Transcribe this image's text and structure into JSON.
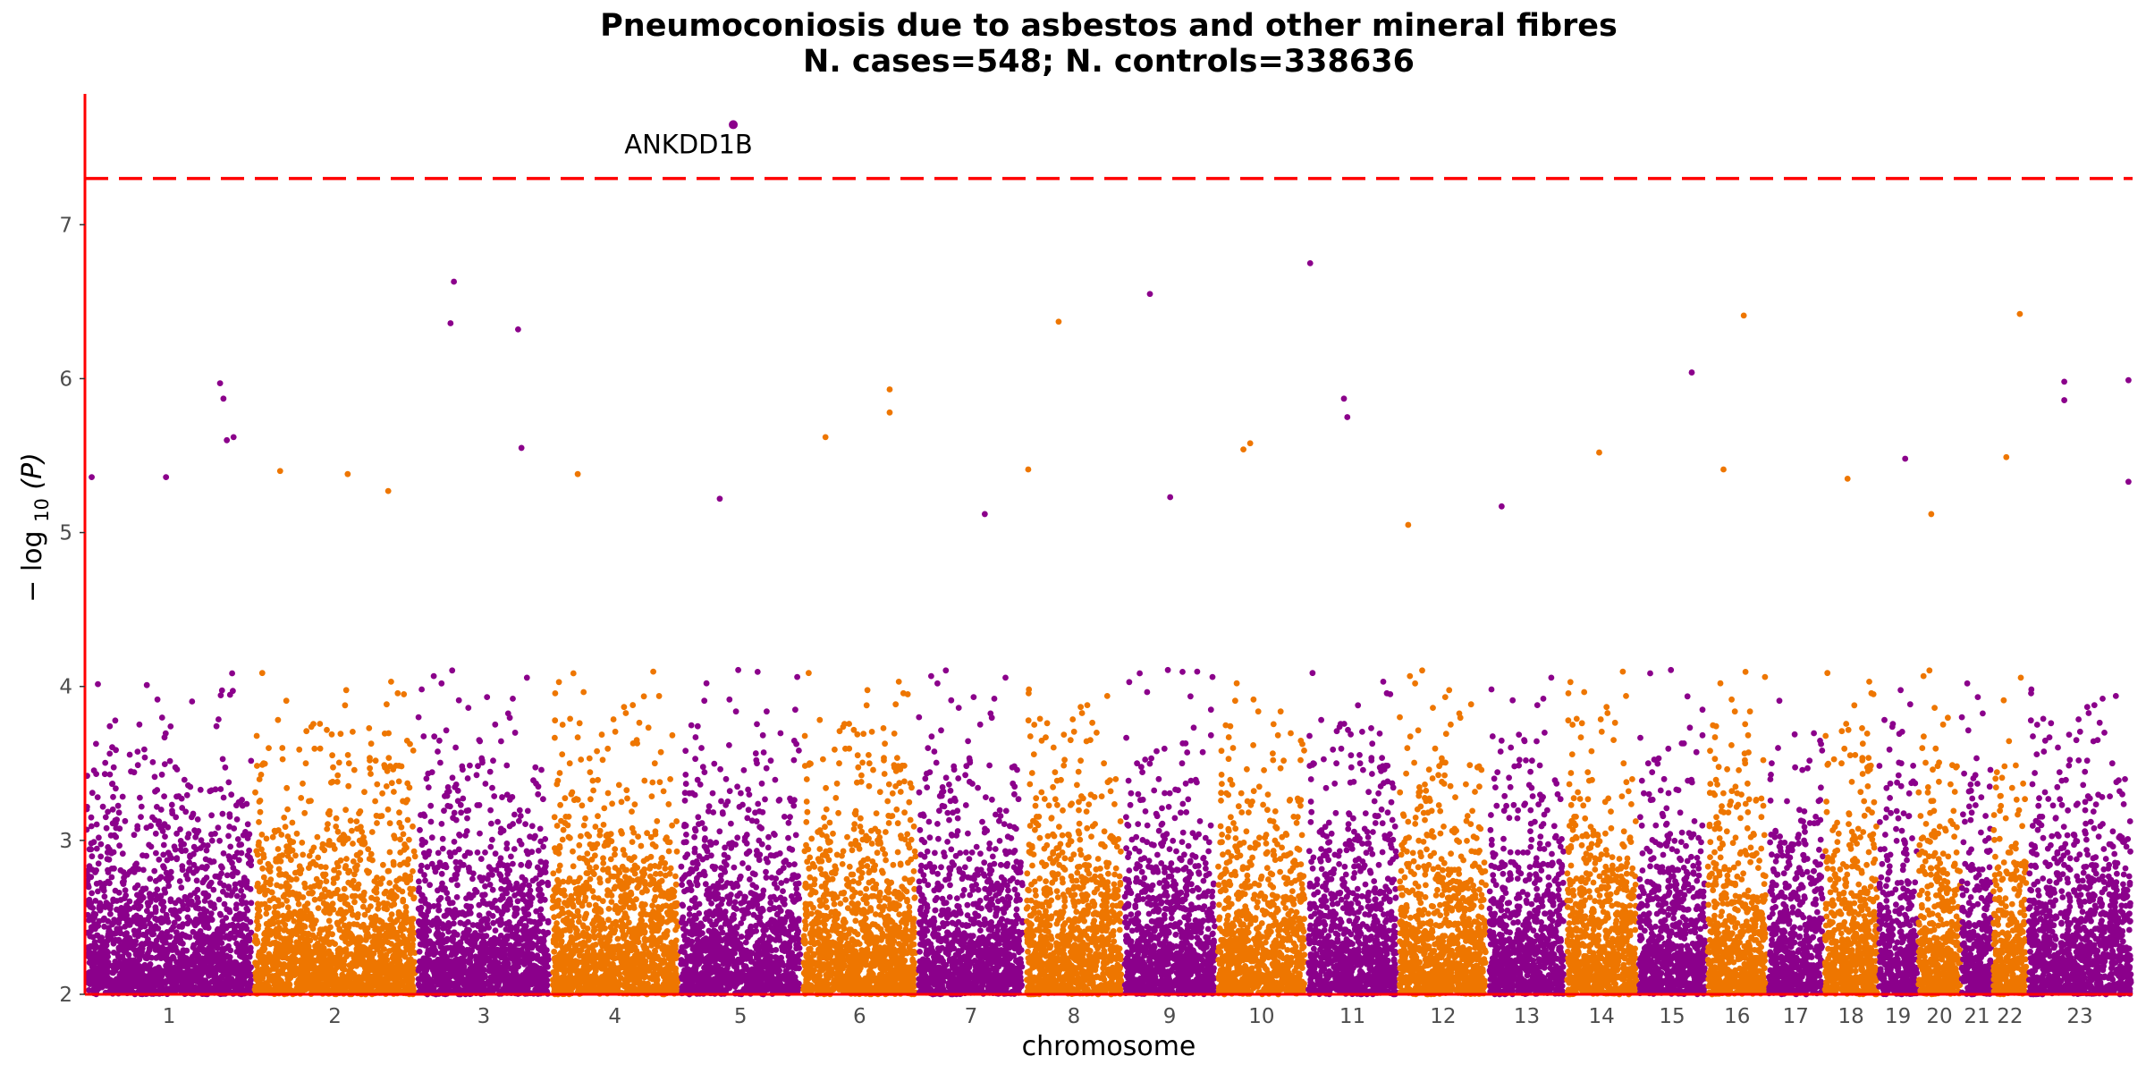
{
  "chart_data": {
    "type": "scatter",
    "title_line1": "Pneumoconiosis due to asbestos and other mineral fibres",
    "title_line2": "N. cases=548; N. controls=338636",
    "xlabel": "chromosome",
    "ylabel_base": "− log",
    "ylabel_sub": "10",
    "ylabel_arg": "(P)",
    "ylim": [
      2,
      7.85
    ],
    "yticks": [
      2,
      3,
      4,
      5,
      6,
      7
    ],
    "threshold": 7.3,
    "colors": {
      "odd": "#8B008B",
      "even": "#EE7600",
      "threshold": "#FF0000",
      "axis": "#FF0000"
    },
    "chromosomes": [
      {
        "label": "1",
        "start": 0,
        "end": 248.9
      },
      {
        "label": "2",
        "start": 248.9,
        "end": 491.1
      },
      {
        "label": "3",
        "start": 491.1,
        "end": 689.4
      },
      {
        "label": "4",
        "start": 689.4,
        "end": 879.6
      },
      {
        "label": "5",
        "start": 879.6,
        "end": 1061.1
      },
      {
        "label": "6",
        "start": 1061.1,
        "end": 1231.9
      },
      {
        "label": "7",
        "start": 1231.9,
        "end": 1391.2
      },
      {
        "label": "8",
        "start": 1391.2,
        "end": 1536.3
      },
      {
        "label": "9",
        "start": 1536.3,
        "end": 1674.7
      },
      {
        "label": "10",
        "start": 1674.7,
        "end": 1808.5
      },
      {
        "label": "11",
        "start": 1808.5,
        "end": 1943.6
      },
      {
        "label": "12",
        "start": 1943.6,
        "end": 2076.9
      },
      {
        "label": "13",
        "start": 2076.9,
        "end": 2191.3
      },
      {
        "label": "14",
        "start": 2191.3,
        "end": 2298.3
      },
      {
        "label": "15",
        "start": 2298.3,
        "end": 2400.3
      },
      {
        "label": "16",
        "start": 2400.3,
        "end": 2490.6
      },
      {
        "label": "17",
        "start": 2490.6,
        "end": 2573.9
      },
      {
        "label": "18",
        "start": 2573.9,
        "end": 2654.2
      },
      {
        "label": "19",
        "start": 2654.2,
        "end": 2712.8
      },
      {
        "label": "20",
        "start": 2712.8,
        "end": 2777.2
      },
      {
        "label": "21",
        "start": 2777.2,
        "end": 2823.9
      },
      {
        "label": "22",
        "start": 2823.9,
        "end": 2874.7
      },
      {
        "label": "23",
        "start": 2874.7,
        "end": 3030.8
      }
    ],
    "top_hits": [
      {
        "chr": "1",
        "pos": 10,
        "y": 5.36
      },
      {
        "chr": "1",
        "pos": 120,
        "y": 5.36
      },
      {
        "chr": "1",
        "pos": 200,
        "y": 5.97
      },
      {
        "chr": "1",
        "pos": 205,
        "y": 5.87
      },
      {
        "chr": "1",
        "pos": 210,
        "y": 5.6
      },
      {
        "chr": "1",
        "pos": 220,
        "y": 5.62
      },
      {
        "chr": "2",
        "pos": 40,
        "y": 5.4
      },
      {
        "chr": "2",
        "pos": 140,
        "y": 5.38
      },
      {
        "chr": "2",
        "pos": 200,
        "y": 5.27
      },
      {
        "chr": "3",
        "pos": 55,
        "y": 6.63
      },
      {
        "chr": "3",
        "pos": 50,
        "y": 6.36
      },
      {
        "chr": "3",
        "pos": 150,
        "y": 6.32
      },
      {
        "chr": "3",
        "pos": 155,
        "y": 5.55
      },
      {
        "chr": "4",
        "pos": 40,
        "y": 5.38
      },
      {
        "chr": "5",
        "pos": 80,
        "y": 7.65,
        "label": "ANKDD1B"
      },
      {
        "chr": "5",
        "pos": 60,
        "y": 5.22
      },
      {
        "chr": "6",
        "pos": 130,
        "y": 5.93
      },
      {
        "chr": "6",
        "pos": 130,
        "y": 5.78
      },
      {
        "chr": "6",
        "pos": 35,
        "y": 5.62
      },
      {
        "chr": "7",
        "pos": 100,
        "y": 5.12
      },
      {
        "chr": "8",
        "pos": 50,
        "y": 6.37
      },
      {
        "chr": "8",
        "pos": 5,
        "y": 5.41
      },
      {
        "chr": "9",
        "pos": 40,
        "y": 6.55
      },
      {
        "chr": "9",
        "pos": 70,
        "y": 5.23
      },
      {
        "chr": "10",
        "pos": 50,
        "y": 5.58
      },
      {
        "chr": "10",
        "pos": 40,
        "y": 5.54
      },
      {
        "chr": "11",
        "pos": 5,
        "y": 6.75
      },
      {
        "chr": "11",
        "pos": 55,
        "y": 5.87
      },
      {
        "chr": "11",
        "pos": 60,
        "y": 5.75
      },
      {
        "chr": "12",
        "pos": 15,
        "y": 5.05
      },
      {
        "chr": "13",
        "pos": 20,
        "y": 5.17
      },
      {
        "chr": "14",
        "pos": 50,
        "y": 5.52
      },
      {
        "chr": "15",
        "pos": 80,
        "y": 6.04
      },
      {
        "chr": "16",
        "pos": 25,
        "y": 5.41
      },
      {
        "chr": "16",
        "pos": 55,
        "y": 6.41
      },
      {
        "chr": "18",
        "pos": 35,
        "y": 5.35
      },
      {
        "chr": "19",
        "pos": 40,
        "y": 5.48
      },
      {
        "chr": "20",
        "pos": 20,
        "y": 5.12
      },
      {
        "chr": "22",
        "pos": 20,
        "y": 5.49
      },
      {
        "chr": "22",
        "pos": 40,
        "y": 6.42
      },
      {
        "chr": "23",
        "pos": 55,
        "y": 5.98
      },
      {
        "chr": "23",
        "pos": 55,
        "y": 5.86
      },
      {
        "chr": "23",
        "pos": 150,
        "y": 5.99
      },
      {
        "chr": "23",
        "pos": 150,
        "y": 5.33
      }
    ]
  }
}
